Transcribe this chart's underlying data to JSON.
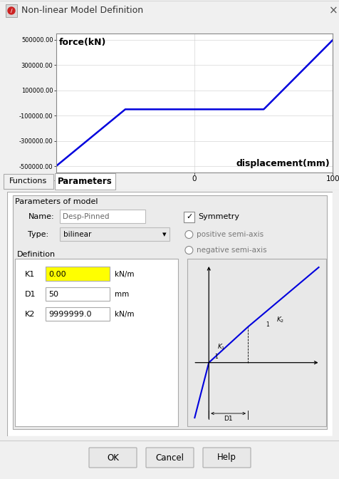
{
  "title": "Non-linear Model Definition",
  "window_bg": "#f0f0f0",
  "chart_bg": "#ffffff",
  "chart_ylabel": "force(kN)",
  "chart_xlabel": "displacement(mm)",
  "x_ticks": [
    -100,
    0,
    100
  ],
  "y_ticks": [
    -500000,
    -300000,
    -100000,
    100000,
    300000,
    500000
  ],
  "y_tick_labels": [
    "-500000.00",
    "-300000.00",
    "-100000.00",
    "100000.00",
    "300000.00",
    "500000.00"
  ],
  "curve_color": "#0000dd",
  "curve_x": [
    -100,
    -50,
    50,
    100
  ],
  "curve_y": [
    -500000,
    -50000,
    -50000,
    500000
  ],
  "tab_functions": "Functions",
  "tab_parameters": "Parameters",
  "param_title": "Parameters of model",
  "label_name": "Name:",
  "name_value": "Desp-Pinned",
  "label_type": "Type:",
  "type_value": "bilinear",
  "symmetry_label": "Symmetry",
  "pos_semi": "positive semi-axis",
  "neg_semi": "negative semi-axis",
  "definition_label": "Definition",
  "k1_label": "K1",
  "k1_value": "0.00",
  "k1_unit": "kN/m",
  "d1_label": "D1",
  "d1_value": "50",
  "d1_unit": "mm",
  "k2_label": "K2",
  "k2_value": "9999999.0",
  "k2_unit": "kN/m",
  "btn_ok": "OK",
  "btn_cancel": "Cancel",
  "btn_help": "Help",
  "highlight_yellow": "#ffff00",
  "icon_bg": "#d0d0d0"
}
